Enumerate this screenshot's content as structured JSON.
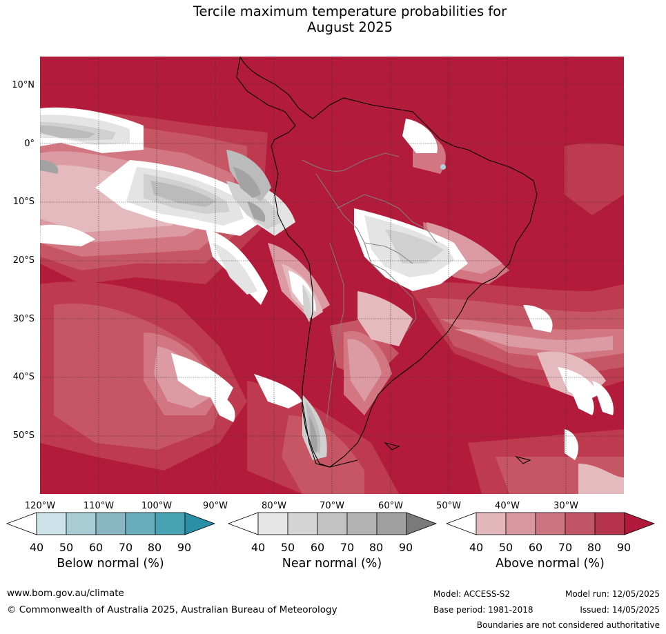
{
  "title_line1": "Tercile maximum temperature probabilities for",
  "title_line2": "August 2025",
  "lat_labels": [
    "10°N",
    "0°",
    "10°S",
    "20°S",
    "30°S",
    "40°S",
    "50°S"
  ],
  "lon_labels": [
    "120°W",
    "110°W",
    "100°W",
    "90°W",
    "80°W",
    "70°W",
    "60°W",
    "50°W",
    "40°W",
    "30°W"
  ],
  "legends": {
    "below": {
      "title": "Below normal (%)",
      "ticks": [
        "40",
        "50",
        "60",
        "70",
        "80",
        "90"
      ],
      "colors": [
        "#ffffff",
        "#cde3ea",
        "#a8cbd4",
        "#88b6c3",
        "#6aadbc",
        "#47a2b2",
        "#2b8fa5"
      ]
    },
    "near": {
      "title": "Near normal (%)",
      "ticks": [
        "40",
        "50",
        "60",
        "70",
        "80",
        "90"
      ],
      "colors": [
        "#ffffff",
        "#e6e6e6",
        "#d4d4d4",
        "#c3c3c3",
        "#b3b3b3",
        "#a0a0a0",
        "#7a7a7a"
      ]
    },
    "above": {
      "title": "Above normal (%)",
      "ticks": [
        "40",
        "50",
        "60",
        "70",
        "80",
        "90"
      ],
      "colors": [
        "#ffffff",
        "#e3b8bd",
        "#d8979f",
        "#cc7480",
        "#c15566",
        "#b5344b",
        "#b0193a"
      ]
    }
  },
  "map_colors": {
    "a90": "#b31b3b",
    "a80": "#bd3a4f",
    "a70": "#c65664",
    "a60": "#d27682",
    "a50": "#dc9aa2",
    "a40": "#e5babe",
    "n40": "#ffffff",
    "n50": "#e4e4e4",
    "n60": "#d0d0d0",
    "n70": "#bbbbbb",
    "n80": "#a3a3a3",
    "b40": "#a9d2da",
    "grid": "#333333",
    "coast": "#000000",
    "border": "#808080"
  },
  "footer": {
    "website": "www.bom.gov.au/climate",
    "copyright": "© Commonwealth of Australia 2025, Australian Bureau of Meteorology",
    "model": "Model: ACCESS-S2",
    "model_run": "Model run: 12/05/2025",
    "base_period": "Base period: 1981-2018",
    "issued": "Issued: 14/05/2025",
    "disclaimer": "Boundaries are not considered authoritative"
  }
}
